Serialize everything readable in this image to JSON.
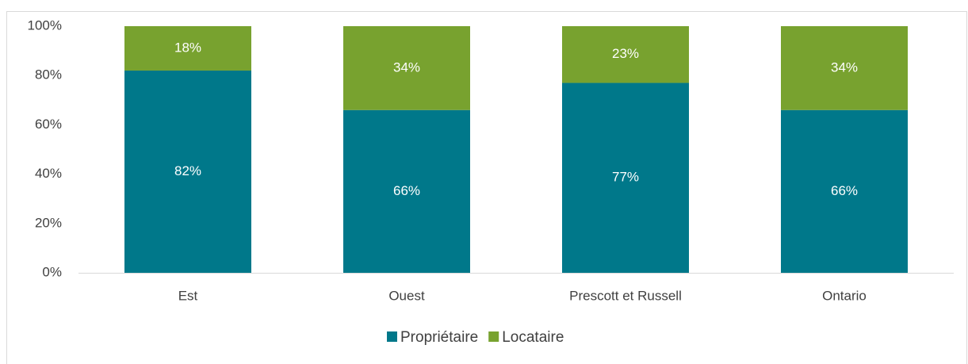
{
  "chart_data": {
    "type": "stacked_bar",
    "categories": [
      "Est",
      "Ouest",
      "Prescott et Russell",
      "Ontario"
    ],
    "series": [
      {
        "name": "Propriétaire",
        "color": "#00788a",
        "values": [
          82,
          66,
          77,
          66
        ],
        "value_labels": [
          "82%",
          "66%",
          "77%",
          "66%"
        ]
      },
      {
        "name": "Locataire",
        "color": "#78a22f",
        "values": [
          18,
          34,
          23,
          34
        ],
        "value_labels": [
          "18%",
          "34%",
          "23%",
          "34%"
        ]
      }
    ],
    "ylim": [
      0,
      100
    ],
    "yticks": [
      {
        "value": 0,
        "label": "0%"
      },
      {
        "value": 20,
        "label": "20%"
      },
      {
        "value": 40,
        "label": "40%"
      },
      {
        "value": 60,
        "label": "60%"
      },
      {
        "value": 80,
        "label": "80%"
      },
      {
        "value": 100,
        "label": "100%"
      }
    ],
    "grid": false,
    "legend": "bottom"
  }
}
